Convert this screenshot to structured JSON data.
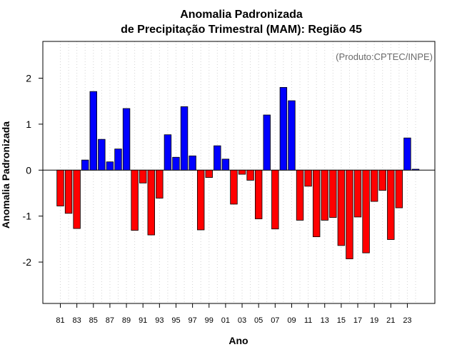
{
  "chart_data": {
    "type": "bar",
    "title": [
      "Anomalia Padronizada",
      "de Precipitação Trimestral (MAM): Região 45"
    ],
    "xlabel": "Ano",
    "ylabel": "Anomalia Padronizada",
    "source": "(Produto:CPTEC/INPE)",
    "ylim": [
      -2.9,
      2.8
    ],
    "yticks": [
      2,
      1,
      0,
      -1,
      -2
    ],
    "ytick_labels": [
      "2",
      "1",
      "0",
      "-1",
      "-2"
    ],
    "grid": "vertical dotted",
    "x_tick_labels": [
      "81",
      "83",
      "85",
      "87",
      "89",
      "91",
      "93",
      "95",
      "97",
      "99",
      "01",
      "03",
      "05",
      "07",
      "09",
      "11",
      "13",
      "15",
      "17",
      "19",
      "21",
      "23"
    ],
    "years": [
      1981,
      1982,
      1983,
      1984,
      1985,
      1986,
      1987,
      1988,
      1989,
      1990,
      1991,
      1992,
      1993,
      1994,
      1995,
      1996,
      1997,
      1998,
      1999,
      2000,
      2001,
      2002,
      2003,
      2004,
      2005,
      2006,
      2007,
      2008,
      2009,
      2010,
      2011,
      2012,
      2013,
      2014,
      2015,
      2016,
      2017,
      2018,
      2019,
      2020,
      2021,
      2022,
      2023,
      2024
    ],
    "values": [
      -0.78,
      -0.94,
      -1.27,
      0.22,
      1.71,
      0.67,
      0.18,
      0.46,
      1.34,
      -1.31,
      -0.28,
      -1.41,
      -0.61,
      0.77,
      0.28,
      1.38,
      0.31,
      -1.3,
      -0.16,
      0.53,
      0.24,
      -0.74,
      -0.09,
      -0.22,
      -1.06,
      1.2,
      -1.28,
      1.8,
      1.51,
      -1.09,
      -0.35,
      -1.45,
      -1.09,
      -1.03,
      -1.64,
      -1.93,
      -1.02,
      -1.8,
      -0.68,
      -0.44,
      -1.51,
      -0.82,
      0.7,
      0.02
    ],
    "positive_color": "#0000ff",
    "negative_color": "#ff0000"
  }
}
